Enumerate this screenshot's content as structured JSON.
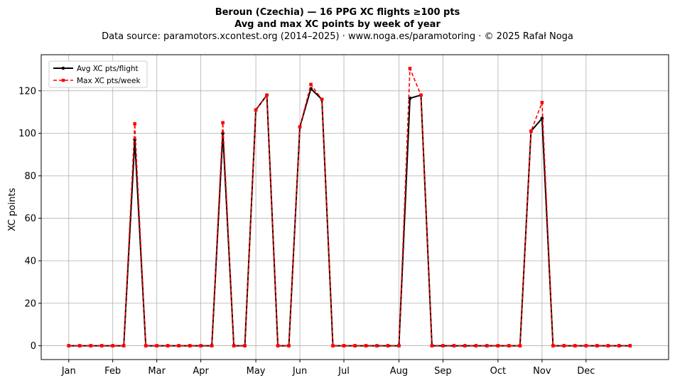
{
  "chart_data": {
    "type": "line",
    "title": "Beroun (Czechia)  —  16 PPG XC flights ≥100 pts",
    "subtitle": "Avg and max XC points by week of year",
    "source_note": "Data source: paramotors.xcontest.org (2014–2025)  ·  www.noga.es/paramotoring  ·  © 2025 Rafał Noga",
    "xlabel": "",
    "ylabel": "XC points",
    "ylim": [
      -6.5,
      137
    ],
    "xlim": [
      -2.5,
      54.5
    ],
    "yticks": [
      0,
      20,
      40,
      60,
      80,
      100,
      120
    ],
    "xticks": [
      {
        "label": "Jan",
        "week": 0
      },
      {
        "label": "Feb",
        "week": 4
      },
      {
        "label": "Mar",
        "week": 8
      },
      {
        "label": "Apr",
        "week": 12
      },
      {
        "label": "May",
        "week": 17
      },
      {
        "label": "Jun",
        "week": 21
      },
      {
        "label": "Jul",
        "week": 25
      },
      {
        "label": "Aug",
        "week": 30
      },
      {
        "label": "Sep",
        "week": 34
      },
      {
        "label": "Oct",
        "week": 39
      },
      {
        "label": "Nov",
        "week": 43
      },
      {
        "label": "Dec",
        "week": 47
      }
    ],
    "grid": true,
    "legend_position": "top-left",
    "x": [
      0,
      1,
      2,
      3,
      4,
      5,
      6,
      7,
      8,
      9,
      10,
      11,
      12,
      13,
      14,
      15,
      16,
      17,
      18,
      19,
      20,
      21,
      22,
      23,
      24,
      25,
      26,
      27,
      28,
      29,
      30,
      31,
      32,
      33,
      34,
      35,
      36,
      37,
      38,
      39,
      40,
      41,
      42,
      43,
      44,
      45,
      46,
      47,
      48,
      49,
      50,
      51
    ],
    "series": [
      {
        "name": "Avg XC pts/flight",
        "color": "#000000",
        "style": "solid-circle",
        "values": [
          0,
          0,
          0,
          0,
          0,
          0,
          97,
          0,
          0,
          0,
          0,
          0,
          0,
          0,
          100,
          0,
          0,
          111,
          118,
          0,
          0,
          103,
          121,
          116,
          0,
          0,
          0,
          0,
          0,
          0,
          0,
          116.5,
          118,
          0,
          0,
          0,
          0,
          0,
          0,
          0,
          0,
          0,
          101,
          107,
          0,
          0,
          0,
          0,
          0,
          0,
          0,
          0
        ]
      },
      {
        "name": "Max XC pts/week",
        "color": "#ff0000",
        "style": "dashed-square",
        "values": [
          0,
          0,
          0,
          0,
          0,
          0,
          104.5,
          0,
          0,
          0,
          0,
          0,
          0,
          0,
          105,
          0,
          0,
          111,
          118,
          0,
          0,
          103,
          123,
          116,
          0,
          0,
          0,
          0,
          0,
          0,
          0,
          130.5,
          118,
          0,
          0,
          0,
          0,
          0,
          0,
          0,
          0,
          0,
          101,
          114.5,
          0,
          0,
          0,
          0,
          0,
          0,
          0,
          0
        ]
      }
    ]
  }
}
